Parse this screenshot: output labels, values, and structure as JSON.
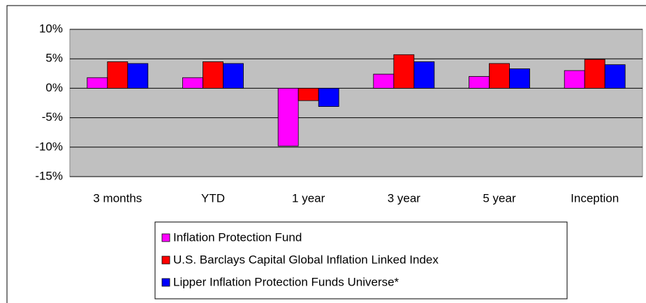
{
  "chart_data": {
    "type": "bar",
    "categories": [
      "3 months",
      "YTD",
      "1 year",
      "3 year",
      "5 year",
      "Inception"
    ],
    "series": [
      {
        "name": "Inflation Protection Fund",
        "color": "#ff00ff",
        "values": [
          1.8,
          1.8,
          -9.8,
          2.4,
          2.0,
          3.0
        ]
      },
      {
        "name": "U.S. Barclays Capital Global Inflation Linked Index",
        "color": "#ff0000",
        "values": [
          4.5,
          4.5,
          -2.1,
          5.7,
          4.2,
          4.9
        ]
      },
      {
        "name": "Lipper Inflation Protection Funds Universe*",
        "color": "#0000ff",
        "values": [
          4.2,
          4.2,
          -3.1,
          4.5,
          3.3,
          4.0
        ]
      }
    ],
    "ylim": [
      -15,
      10
    ],
    "yticks": [
      {
        "value": -15,
        "label": "-15%"
      },
      {
        "value": -10,
        "label": "-10%"
      },
      {
        "value": -5,
        "label": "-5%"
      },
      {
        "value": 0,
        "label": "0%"
      },
      {
        "value": 5,
        "label": "5%"
      },
      {
        "value": 10,
        "label": "10%"
      }
    ],
    "grid": true,
    "legend": "bottom"
  }
}
